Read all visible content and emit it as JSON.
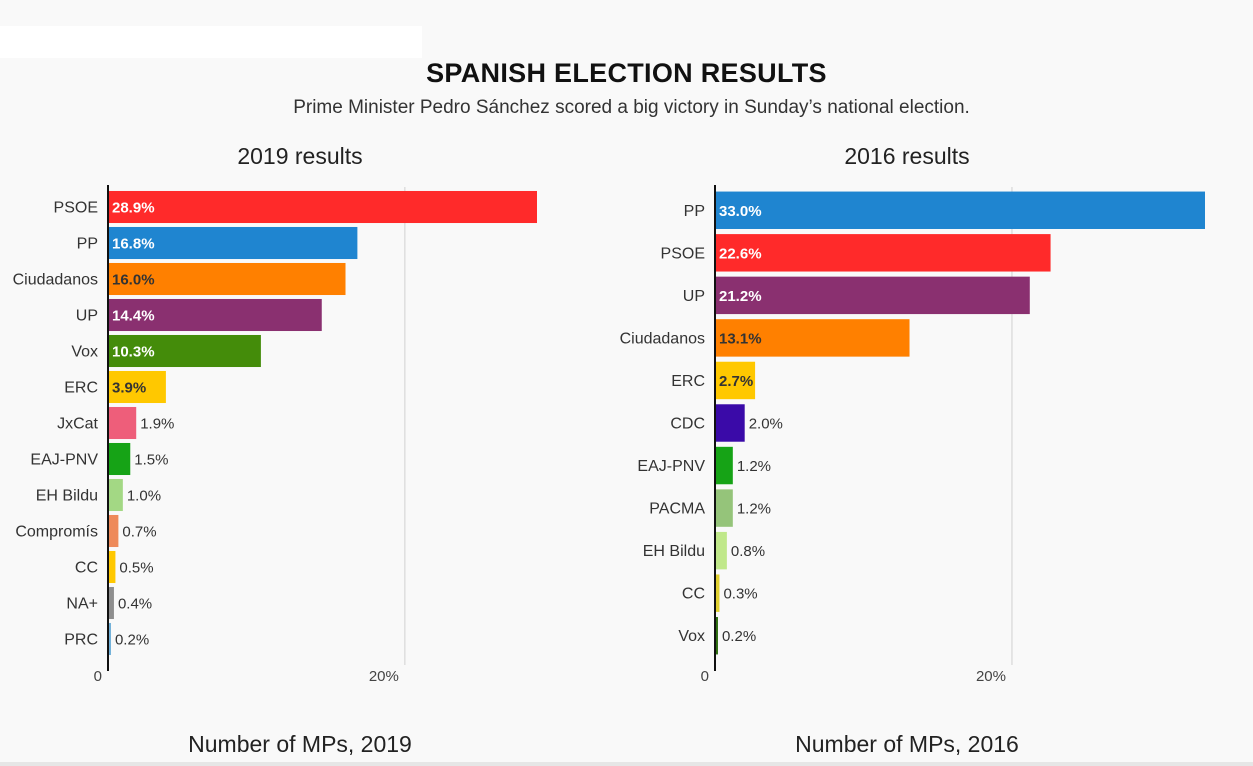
{
  "header": {
    "title": "SPANISH ELECTION RESULTS",
    "subtitle": "Prime Minister Pedro Sánchez scored a big victory in Sunday’s national election."
  },
  "chart_data": [
    {
      "type": "bar",
      "orientation": "horizontal",
      "title": "2019 results",
      "footer": "Number of MPs, 2019",
      "categories": [
        "PSOE",
        "PP",
        "Ciudadanos",
        "UP",
        "Vox",
        "ERC",
        "JxCat",
        "EAJ-PNV",
        "EH Bildu",
        "Compromís",
        "CC",
        "NA+",
        "PRC"
      ],
      "values": [
        28.9,
        16.8,
        16.0,
        14.4,
        10.3,
        3.9,
        1.9,
        1.5,
        1.0,
        0.7,
        0.5,
        0.4,
        0.2
      ],
      "labels": [
        "28.9%",
        "16.8%",
        "16.0%",
        "14.4%",
        "10.3%",
        "3.9%",
        "1.9%",
        "1.5%",
        "1.0%",
        "0.7%",
        "0.5%",
        "0.4%",
        "0.2%"
      ],
      "colors": [
        "#ff2a2a",
        "#1f85d0",
        "#ff8000",
        "#8a3070",
        "#448c0a",
        "#ffc800",
        "#ee5e7a",
        "#16a316",
        "#a3d884",
        "#ee8a5a",
        "#ffc800",
        "#8e8e8e",
        "#70b0d8"
      ],
      "label_inside": [
        true,
        true,
        true,
        true,
        true,
        true,
        false,
        false,
        false,
        false,
        false,
        false,
        false
      ],
      "label_color": [
        "#ffffff",
        "#ffffff",
        "#333333",
        "#ffffff",
        "#ffffff",
        "#333333",
        "#333333",
        "#333333",
        "#333333",
        "#333333",
        "#333333",
        "#333333",
        "#333333"
      ],
      "xlim": [
        0,
        32
      ],
      "tick_labels": [
        {
          "value": 0,
          "label": "0"
        },
        {
          "value": 20,
          "label": "20%"
        }
      ],
      "grid": true
    },
    {
      "type": "bar",
      "orientation": "horizontal",
      "title": "2016 results",
      "footer": "Number of MPs, 2016",
      "categories": [
        "PP",
        "PSOE",
        "UP",
        "Ciudadanos",
        "ERC",
        "CDC",
        "EAJ-PNV",
        "PACMA",
        "EH Bildu",
        "CC",
        "Vox"
      ],
      "values": [
        33.0,
        22.6,
        21.2,
        13.1,
        2.7,
        2.0,
        1.2,
        1.2,
        0.8,
        0.3,
        0.2
      ],
      "labels": [
        "33.0%",
        "22.6%",
        "21.2%",
        "13.1%",
        "2.7%",
        "2.0%",
        "1.2%",
        "1.2%",
        "0.8%",
        "0.3%",
        "0.2%"
      ],
      "colors": [
        "#1f85d0",
        "#ff2a2a",
        "#8a3070",
        "#ff8000",
        "#ffc800",
        "#3a0aa8",
        "#16a316",
        "#95c47a",
        "#c0e88a",
        "#e0d030",
        "#2e6e10"
      ],
      "label_inside": [
        true,
        true,
        true,
        true,
        true,
        false,
        false,
        false,
        false,
        false,
        false
      ],
      "label_color": [
        "#ffffff",
        "#ffffff",
        "#ffffff",
        "#333333",
        "#333333",
        "#333333",
        "#333333",
        "#333333",
        "#333333",
        "#333333",
        "#333333"
      ],
      "xlim": [
        0,
        33
      ],
      "tick_labels": [
        {
          "value": 0,
          "label": "0"
        },
        {
          "value": 20,
          "label": "20%"
        }
      ],
      "grid": true
    }
  ]
}
